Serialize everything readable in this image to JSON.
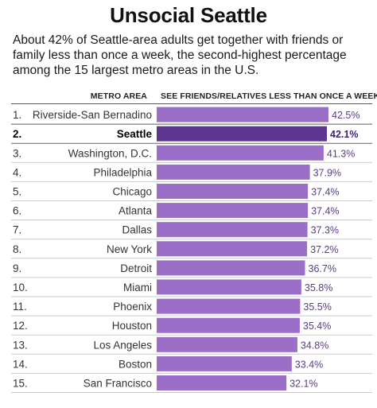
{
  "title": "Unsocial Seattle",
  "subtitle": "About 42% of Seattle-area adults get together with friends or family less than once a week, the second-highest percentage among the 15 largest metro areas in the U.S.",
  "headers": {
    "area": "METRO AREA",
    "metric": "SEE FRIENDS/RELATIVES LESS THAN ONCE A WEEK"
  },
  "colors": {
    "bar": "#9b6fc7",
    "bar_highlight": "#5e3592",
    "row_rule": "#c9c9c9"
  },
  "chart_data": {
    "type": "bar",
    "orientation": "horizontal",
    "highlight": "Seattle",
    "ranks": [
      "1.",
      "2.",
      "3.",
      "4.",
      "5.",
      "6.",
      "7.",
      "8.",
      "9.",
      "10.",
      "11.",
      "12.",
      "13.",
      "14.",
      "15."
    ],
    "categories": [
      "Riverside-San Bernadino",
      "Seattle",
      "Washington, D.C.",
      "Philadelphia",
      "Chicago",
      "Atlanta",
      "Dallas",
      "New York",
      "Detroit",
      "Miami",
      "Phoenix",
      "Houston",
      "Los Angeles",
      "Boston",
      "San Francisco"
    ],
    "values": [
      42.5,
      42.1,
      41.3,
      37.9,
      37.4,
      37.4,
      37.3,
      37.2,
      36.7,
      35.8,
      35.5,
      35.4,
      34.8,
      33.4,
      32.1
    ],
    "value_labels": [
      "42.5%",
      "42.1%",
      "41.3%",
      "37.9%",
      "37.4%",
      "37.4%",
      "37.3%",
      "37.2%",
      "36.7%",
      "35.8%",
      "35.5%",
      "35.4%",
      "34.8%",
      "33.4%",
      "32.1%"
    ],
    "unit": "%",
    "xlim": [
      0,
      42.5
    ]
  }
}
